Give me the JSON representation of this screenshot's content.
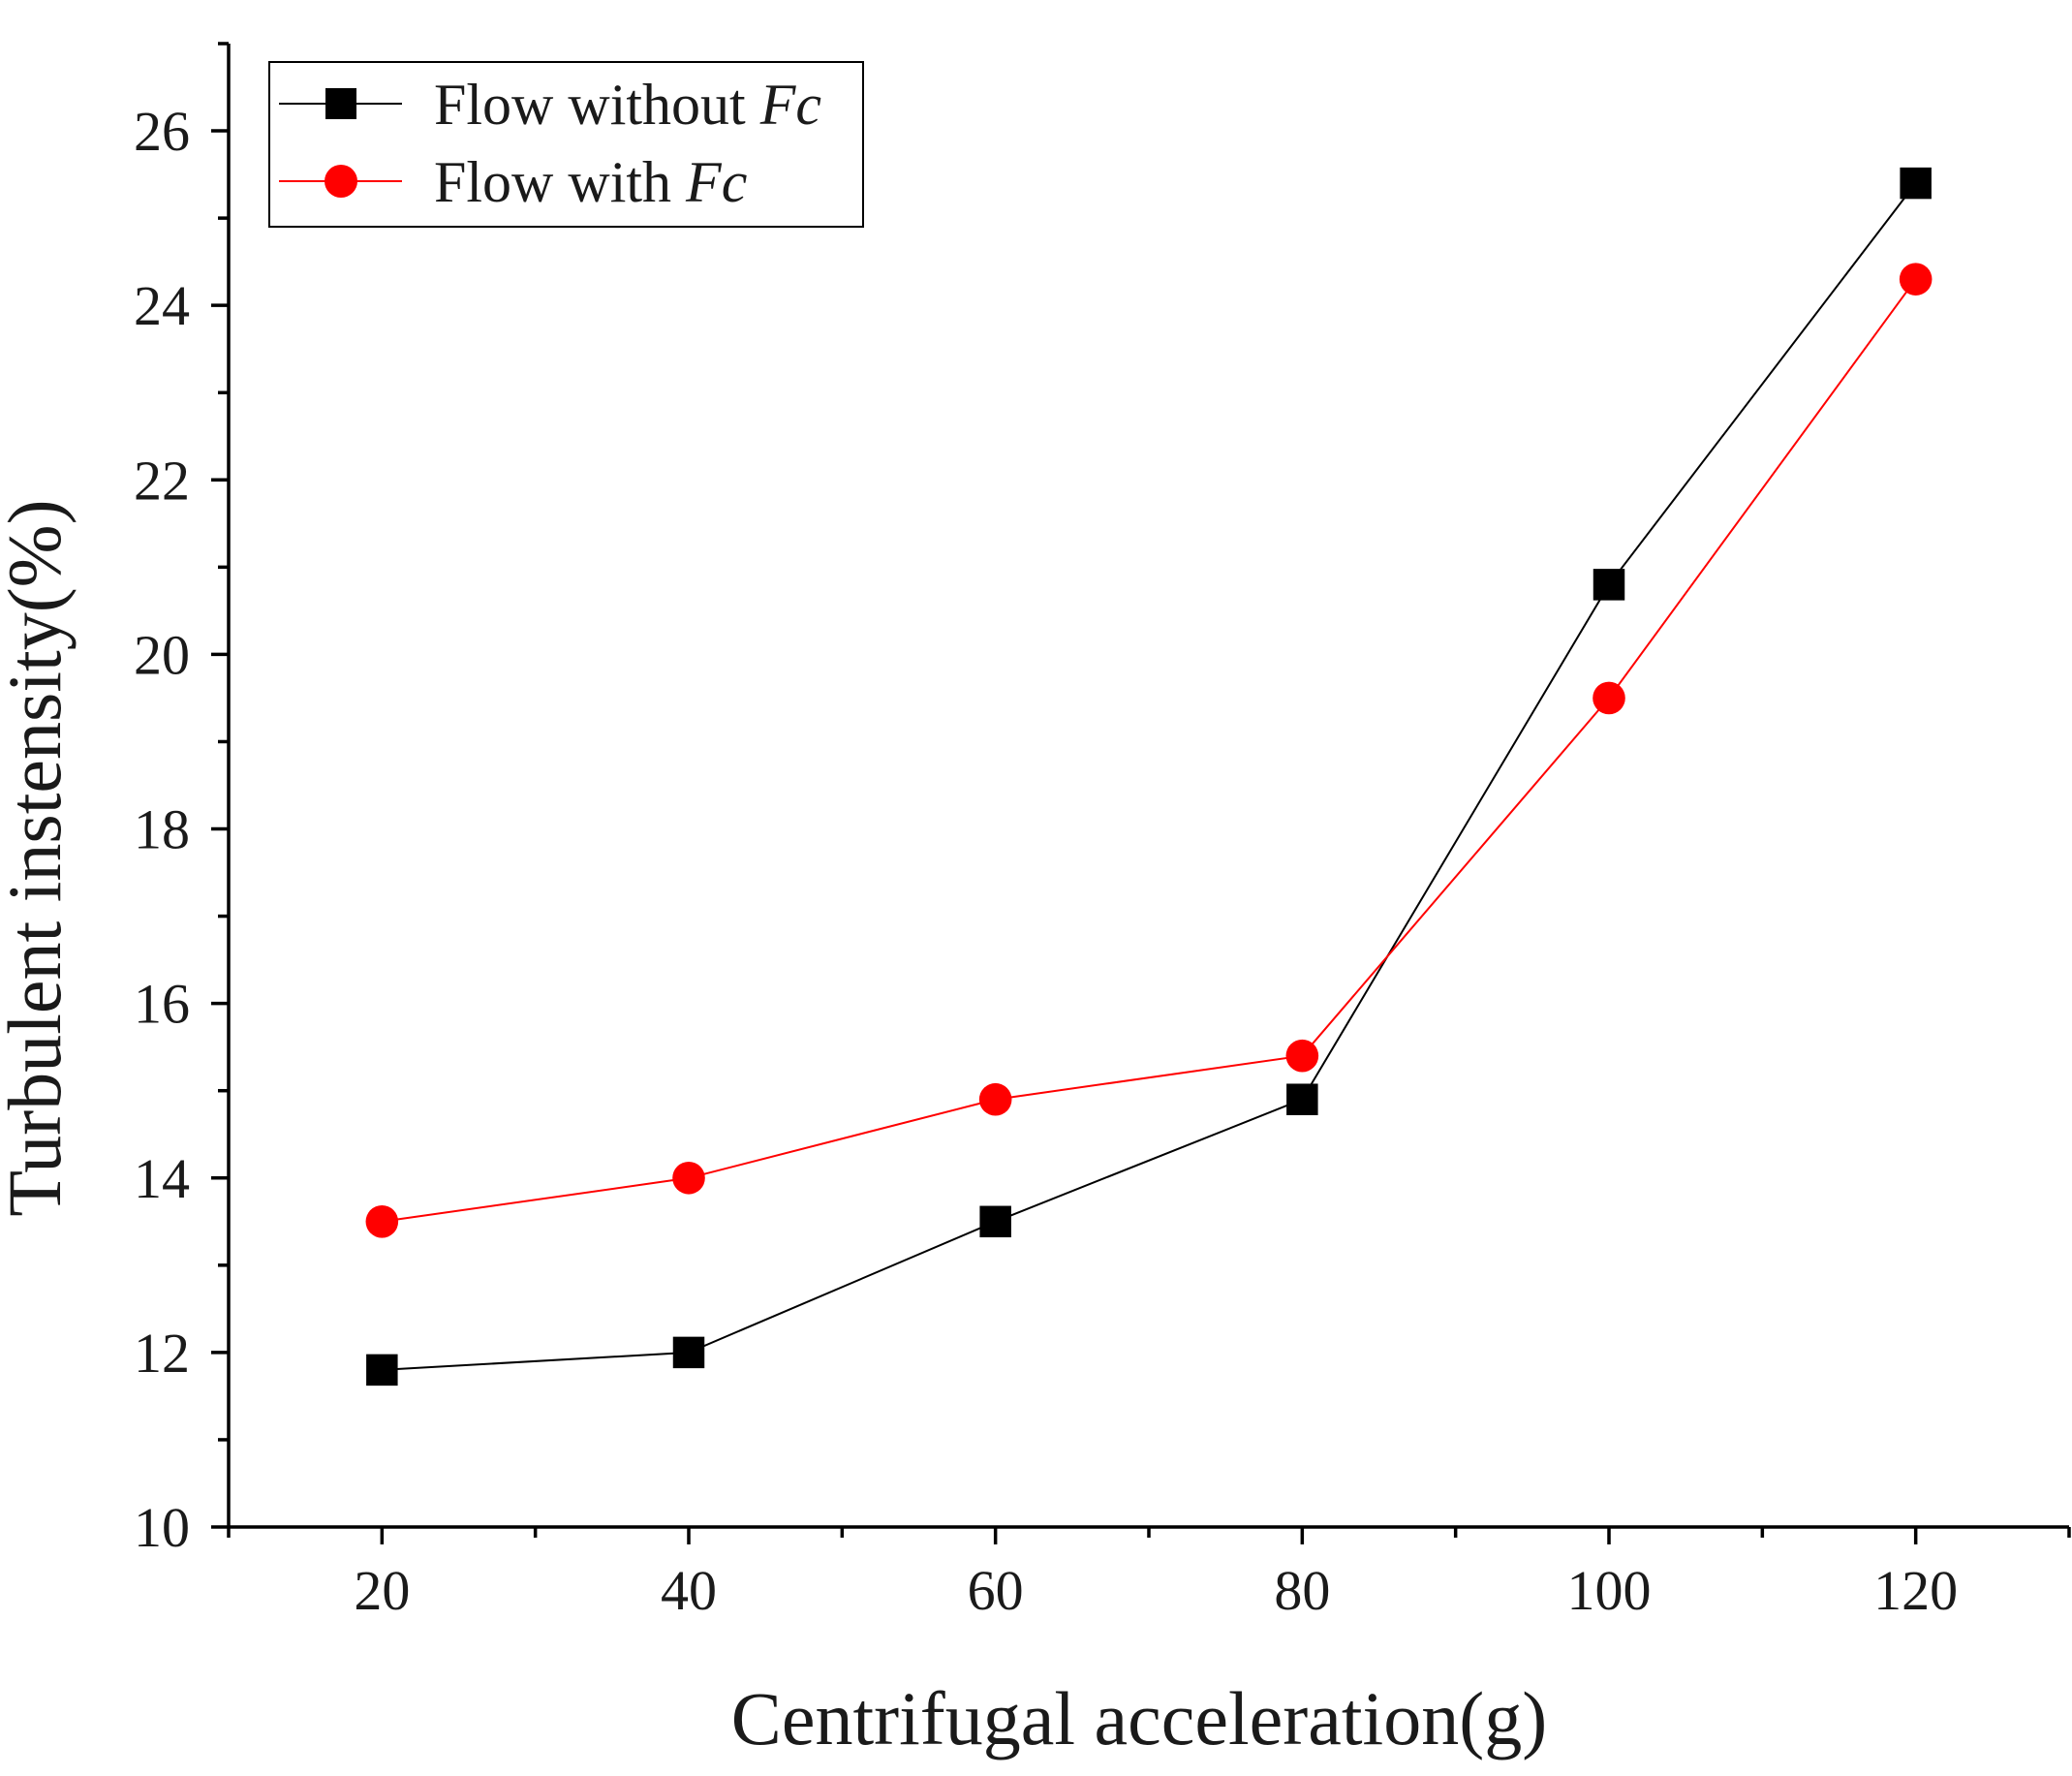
{
  "chart_data": {
    "type": "line",
    "title": "",
    "xlabel": "Centrifugal acceleration(g)",
    "ylabel": "Turbulent instensity(%)",
    "x": [
      20,
      40,
      60,
      80,
      100,
      120
    ],
    "xlim": [
      10,
      130
    ],
    "ylim": [
      10,
      27
    ],
    "xticks": [
      20,
      40,
      60,
      80,
      100,
      120
    ],
    "xtick_labels": [
      "20",
      "40",
      "60",
      "80",
      "100",
      "120"
    ],
    "xminor": [
      10,
      30,
      50,
      70,
      90,
      110,
      130
    ],
    "yticks": [
      10,
      12,
      14,
      16,
      18,
      20,
      22,
      24,
      26
    ],
    "ytick_labels": [
      "10",
      "12",
      "14",
      "16",
      "18",
      "20",
      "22",
      "24",
      "26"
    ],
    "yminor": [
      11,
      13,
      15,
      17,
      19,
      21,
      23,
      25,
      27
    ],
    "grid": false,
    "legend_position": "top-left",
    "series": [
      {
        "name": "Flow without Fc",
        "label_text": "Flow without ",
        "label_italic": "Fc",
        "color": "#000000",
        "marker": "square",
        "values": [
          11.8,
          12.0,
          13.5,
          14.9,
          20.8,
          25.4
        ]
      },
      {
        "name": "Flow with Fc",
        "label_text": "Flow with ",
        "label_italic": "Fc",
        "color": "#ff0000",
        "marker": "circle",
        "values": [
          13.5,
          14.0,
          14.9,
          15.4,
          19.5,
          24.3
        ]
      }
    ]
  }
}
